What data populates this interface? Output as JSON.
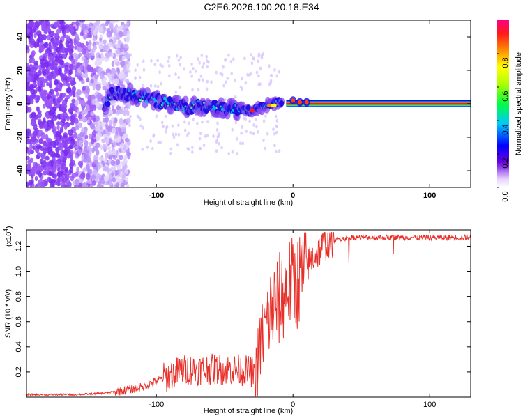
{
  "title": "C2E6.2026.100.20.18.E34",
  "chart_data": [
    {
      "type": "heatmap",
      "name": "spectrogram",
      "xlabel": "Height of straight line (km)",
      "ylabel": "Frequency (Hz)",
      "xlim": [
        -195,
        130
      ],
      "ylim": [
        -50,
        50
      ],
      "xticks": [
        -100,
        0,
        100
      ],
      "yticks": [
        -40,
        -20,
        0,
        20,
        40
      ],
      "xtick_labels": [
        "-100",
        "0",
        "100"
      ],
      "ytick_labels": [
        "-40",
        "-20",
        "0",
        "20",
        "40"
      ],
      "colorbar": {
        "label": "Normalized spectral amplitude",
        "range": [
          0,
          1
        ],
        "ticks": [
          0.0,
          0.2,
          0.4,
          0.6,
          0.8
        ],
        "tick_labels": [
          "0.0",
          "0.2",
          "0.4",
          "0.6",
          "0.8"
        ]
      },
      "noise_region_x": [
        -195,
        -120
      ],
      "signal_trace": [
        {
          "x": -135,
          "y": 6
        },
        {
          "x": -120,
          "y": 6
        },
        {
          "x": -100,
          "y": 2
        },
        {
          "x": -80,
          "y": -2
        },
        {
          "x": -60,
          "y": -1
        },
        {
          "x": -45,
          "y": -3
        },
        {
          "x": -30,
          "y": -4
        },
        {
          "x": -20,
          "y": -1
        },
        {
          "x": -10,
          "y": 1
        },
        {
          "x": 0,
          "y": 0
        },
        {
          "x": 130,
          "y": 0
        }
      ],
      "carrier_line": {
        "x_start": -5,
        "x_end": 130,
        "y": 0
      }
    },
    {
      "type": "line",
      "name": "snr",
      "xlabel": "Height of straight line (km)",
      "ylabel": "SNR (10 * v/v)",
      "y_multiplier": "(x10",
      "y_multiplier_exp": "4",
      "xlim": [
        -195,
        130
      ],
      "ylim": [
        0,
        1.33
      ],
      "xticks": [
        -100,
        0,
        100
      ],
      "yticks": [
        0.2,
        0.4,
        0.6,
        0.8,
        1.0,
        1.2
      ],
      "xtick_labels": [
        "-100",
        "0",
        "100"
      ],
      "ytick_labels": [
        "0.2",
        "0.4",
        "0.6",
        "0.8",
        "1.0",
        "1.2"
      ],
      "color": "#e8302a",
      "series": [
        {
          "name": "SNR",
          "x": [
            -195,
            -160,
            -140,
            -125,
            -110,
            -95,
            -80,
            -60,
            -40,
            -30,
            -28,
            -22,
            -18,
            -12,
            -8,
            -3,
            2,
            8,
            15,
            25,
            35,
            45,
            60,
            80,
            100,
            130
          ],
          "y": [
            0.02,
            0.02,
            0.03,
            0.05,
            0.08,
            0.15,
            0.22,
            0.22,
            0.22,
            0.2,
            0.15,
            0.5,
            0.65,
            0.75,
            0.8,
            0.9,
            0.9,
            1.0,
            1.12,
            1.23,
            1.26,
            1.27,
            1.27,
            1.27,
            1.27,
            1.27
          ]
        }
      ]
    }
  ]
}
